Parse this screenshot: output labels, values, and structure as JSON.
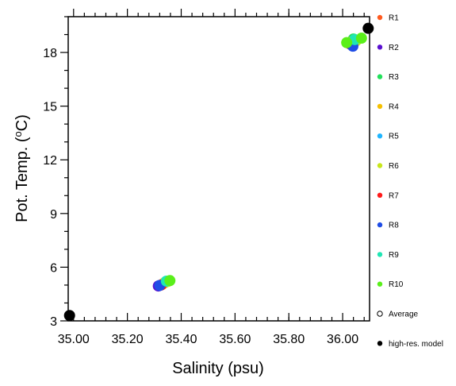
{
  "chart_data": {
    "type": "scatter",
    "xlabel": "Salinity (psu)",
    "ylabel": "Pot. Temp. (",
    "ylabel_unit": "o",
    "ylabel_suffix": "C)",
    "xlim": [
      34.98,
      36.1
    ],
    "ylim": [
      3,
      20
    ],
    "xticks": [
      35.0,
      35.2,
      35.4,
      35.6,
      35.8,
      36.0
    ],
    "xtick_labels": [
      "35.00",
      "35.20",
      "35.40",
      "35.60",
      "35.80",
      "36.00"
    ],
    "yticks": [
      3,
      6,
      9,
      12,
      15,
      18
    ],
    "ytick_labels": [
      "3",
      "6",
      "9",
      "12",
      "15",
      "18"
    ],
    "legend_position": "right",
    "series": [
      {
        "name": "R1",
        "color": "#ff5a1f",
        "points": [
          [
            35.33,
            5.05
          ],
          [
            36.03,
            18.55
          ]
        ]
      },
      {
        "name": "R2",
        "color": "#5a10d0",
        "points": [
          [
            35.315,
            4.95
          ],
          [
            36.03,
            18.45
          ]
        ]
      },
      {
        "name": "R3",
        "color": "#22e05a",
        "points": [
          [
            35.34,
            5.15
          ],
          [
            36.04,
            18.75
          ]
        ]
      },
      {
        "name": "R4",
        "color": "#f5c000",
        "points": [
          [
            35.335,
            5.1
          ],
          [
            36.035,
            18.6
          ]
        ]
      },
      {
        "name": "R5",
        "color": "#1fb5ff",
        "points": [
          [
            35.345,
            5.2
          ],
          [
            36.045,
            18.7
          ]
        ]
      },
      {
        "name": "R6",
        "color": "#c8e61a",
        "points": [
          [
            35.35,
            5.2
          ],
          [
            36.05,
            18.65
          ]
        ]
      },
      {
        "name": "R7",
        "color": "#ff1a1a",
        "points": [
          [
            35.325,
            5.0
          ],
          [
            36.025,
            18.5
          ]
        ]
      },
      {
        "name": "R8",
        "color": "#1f4de6",
        "points": [
          [
            35.32,
            4.98
          ],
          [
            36.038,
            18.35
          ]
        ]
      },
      {
        "name": "R9",
        "color": "#1fe6b4",
        "points": [
          [
            35.345,
            5.22
          ],
          [
            36.045,
            18.72
          ]
        ]
      },
      {
        "name": "R10",
        "color": "#5aef1a",
        "points": [
          [
            35.358,
            5.25
          ],
          [
            36.015,
            18.55
          ],
          [
            36.07,
            18.8
          ]
        ]
      },
      {
        "name": "Average",
        "color": "#000000",
        "hollow": true,
        "points": []
      },
      {
        "name": "high-res. model",
        "color": "#000000",
        "points": [
          [
            34.985,
            3.3
          ],
          [
            36.095,
            19.35
          ]
        ]
      }
    ]
  }
}
